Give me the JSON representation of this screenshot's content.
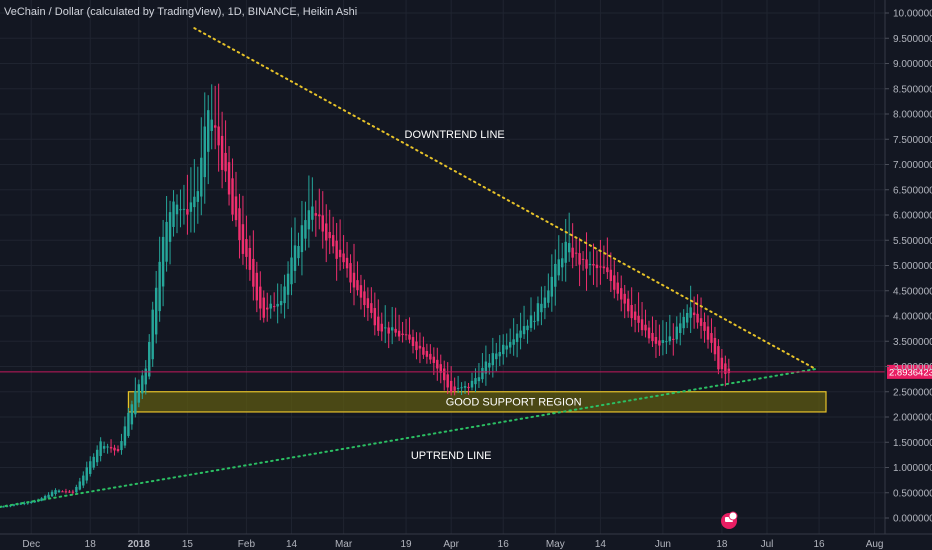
{
  "chart_data": {
    "type": "candlestick",
    "title": "VeChain / Dollar (calculated by TradingView), 1D, BINANCE, Heikin Ashi",
    "colors": {
      "background": "#131722",
      "up": "#26a69a",
      "down": "#ef2f6e",
      "downtrend": "#e6c229",
      "uptrend": "#2bbf63",
      "support_fill": "#5e5a12",
      "support_border": "#e6c229",
      "price_line": "#c2185b",
      "price_badge": "#e91e63"
    },
    "y_axis": {
      "min": 0,
      "max": 10,
      "ticks": [
        "0.00000000",
        "0.50000000",
        "1.00000000",
        "1.50000000",
        "2.00000000",
        "2.50000000",
        "3.00000000",
        "3.50000000",
        "4.00000000",
        "4.50000000",
        "5.00000000",
        "5.50000000",
        "6.00000000",
        "6.50000000",
        "7.00000000",
        "7.50000000",
        "8.00000000",
        "8.50000000",
        "9.00000000",
        "9.50000000",
        "10.00000000"
      ],
      "position": "right"
    },
    "x_axis": {
      "start": "2017-11-22",
      "end": "2018-08-04",
      "labels": [
        {
          "text": "Dec",
          "date": "2017-12-01",
          "bold": false
        },
        {
          "text": "18",
          "date": "2017-12-18",
          "bold": false
        },
        {
          "text": "2018",
          "date": "2018-01-01",
          "bold": true
        },
        {
          "text": "15",
          "date": "2018-01-15",
          "bold": false
        },
        {
          "text": "Feb",
          "date": "2018-02-01",
          "bold": false
        },
        {
          "text": "14",
          "date": "2018-02-14",
          "bold": false
        },
        {
          "text": "Mar",
          "date": "2018-03-01",
          "bold": false
        },
        {
          "text": "19",
          "date": "2018-03-19",
          "bold": false
        },
        {
          "text": "Apr",
          "date": "2018-04-01",
          "bold": false
        },
        {
          "text": "16",
          "date": "2018-04-16",
          "bold": false
        },
        {
          "text": "May",
          "date": "2018-05-01",
          "bold": false
        },
        {
          "text": "14",
          "date": "2018-05-14",
          "bold": false
        },
        {
          "text": "Jun",
          "date": "2018-06-01",
          "bold": false
        },
        {
          "text": "18",
          "date": "2018-06-18",
          "bold": false
        },
        {
          "text": "Jul",
          "date": "2018-07-01",
          "bold": false
        },
        {
          "text": "16",
          "date": "2018-07-16",
          "bold": false
        },
        {
          "text": "Aug",
          "date": "2018-08-01",
          "bold": false
        }
      ]
    },
    "current_price": {
      "value": 2.89364237,
      "label": "2.89364237"
    },
    "close_path": [
      {
        "date": "2017-11-22",
        "close": 0.22
      },
      {
        "date": "2017-12-03",
        "close": 0.35
      },
      {
        "date": "2017-12-08",
        "close": 0.55
      },
      {
        "date": "2017-12-13",
        "close": 0.5
      },
      {
        "date": "2017-12-16",
        "close": 0.85
      },
      {
        "date": "2017-12-21",
        "close": 1.5
      },
      {
        "date": "2017-12-26",
        "close": 1.3
      },
      {
        "date": "2017-12-30",
        "close": 2.3
      },
      {
        "date": "2018-01-03",
        "close": 3.0
      },
      {
        "date": "2018-01-07",
        "close": 5.2
      },
      {
        "date": "2018-01-11",
        "close": 6.4
      },
      {
        "date": "2018-01-14",
        "close": 6.0
      },
      {
        "date": "2018-01-18",
        "close": 6.5
      },
      {
        "date": "2018-01-21",
        "close": 8.1
      },
      {
        "date": "2018-01-24",
        "close": 7.4
      },
      {
        "date": "2018-01-28",
        "close": 6.0
      },
      {
        "date": "2018-02-03",
        "close": 4.6
      },
      {
        "date": "2018-02-06",
        "close": 4.0
      },
      {
        "date": "2018-02-11",
        "close": 4.4
      },
      {
        "date": "2018-02-16",
        "close": 5.5
      },
      {
        "date": "2018-02-19",
        "close": 6.2
      },
      {
        "date": "2018-02-24",
        "close": 5.6
      },
      {
        "date": "2018-03-04",
        "close": 4.6
      },
      {
        "date": "2018-03-11",
        "close": 3.8
      },
      {
        "date": "2018-03-18",
        "close": 3.6
      },
      {
        "date": "2018-03-26",
        "close": 3.2
      },
      {
        "date": "2018-04-01",
        "close": 2.5
      },
      {
        "date": "2018-04-06",
        "close": 2.6
      },
      {
        "date": "2018-04-13",
        "close": 3.2
      },
      {
        "date": "2018-04-20",
        "close": 3.7
      },
      {
        "date": "2018-04-25",
        "close": 4.0
      },
      {
        "date": "2018-04-29",
        "close": 4.6
      },
      {
        "date": "2018-05-04",
        "close": 5.4
      },
      {
        "date": "2018-05-09",
        "close": 5.0
      },
      {
        "date": "2018-05-15",
        "close": 4.9
      },
      {
        "date": "2018-05-20",
        "close": 4.4
      },
      {
        "date": "2018-05-25",
        "close": 3.8
      },
      {
        "date": "2018-05-30",
        "close": 3.4
      },
      {
        "date": "2018-06-04",
        "close": 3.6
      },
      {
        "date": "2018-06-09",
        "close": 4.1
      },
      {
        "date": "2018-06-13",
        "close": 3.8
      },
      {
        "date": "2018-06-17",
        "close": 3.0
      },
      {
        "date": "2018-06-20",
        "close": 2.89
      }
    ],
    "downtrend_line": {
      "label": "DOWNTREND LINE",
      "start": {
        "date": "2018-01-17",
        "value": 9.7
      },
      "end": {
        "date": "2018-07-15",
        "value": 2.95
      }
    },
    "uptrend_line": {
      "label": "UPTREND LINE",
      "start": {
        "date": "2017-11-22",
        "value": 0.22
      },
      "end": {
        "date": "2018-07-15",
        "value": 2.95
      }
    },
    "support_region": {
      "label": "GOOD SUPPORT REGION",
      "start": "2017-12-29",
      "end": "2018-07-18",
      "low": 2.1,
      "high": 2.5
    },
    "annotations": [
      {
        "text": "DOWNTREND LINE",
        "date": "2018-04-02",
        "value": 7.6
      },
      {
        "text": "UPTREND LINE",
        "date": "2018-04-01",
        "value": 1.25
      },
      {
        "text": "GOOD SUPPORT REGION",
        "date": "2018-04-19",
        "value": 2.31
      }
    ]
  }
}
